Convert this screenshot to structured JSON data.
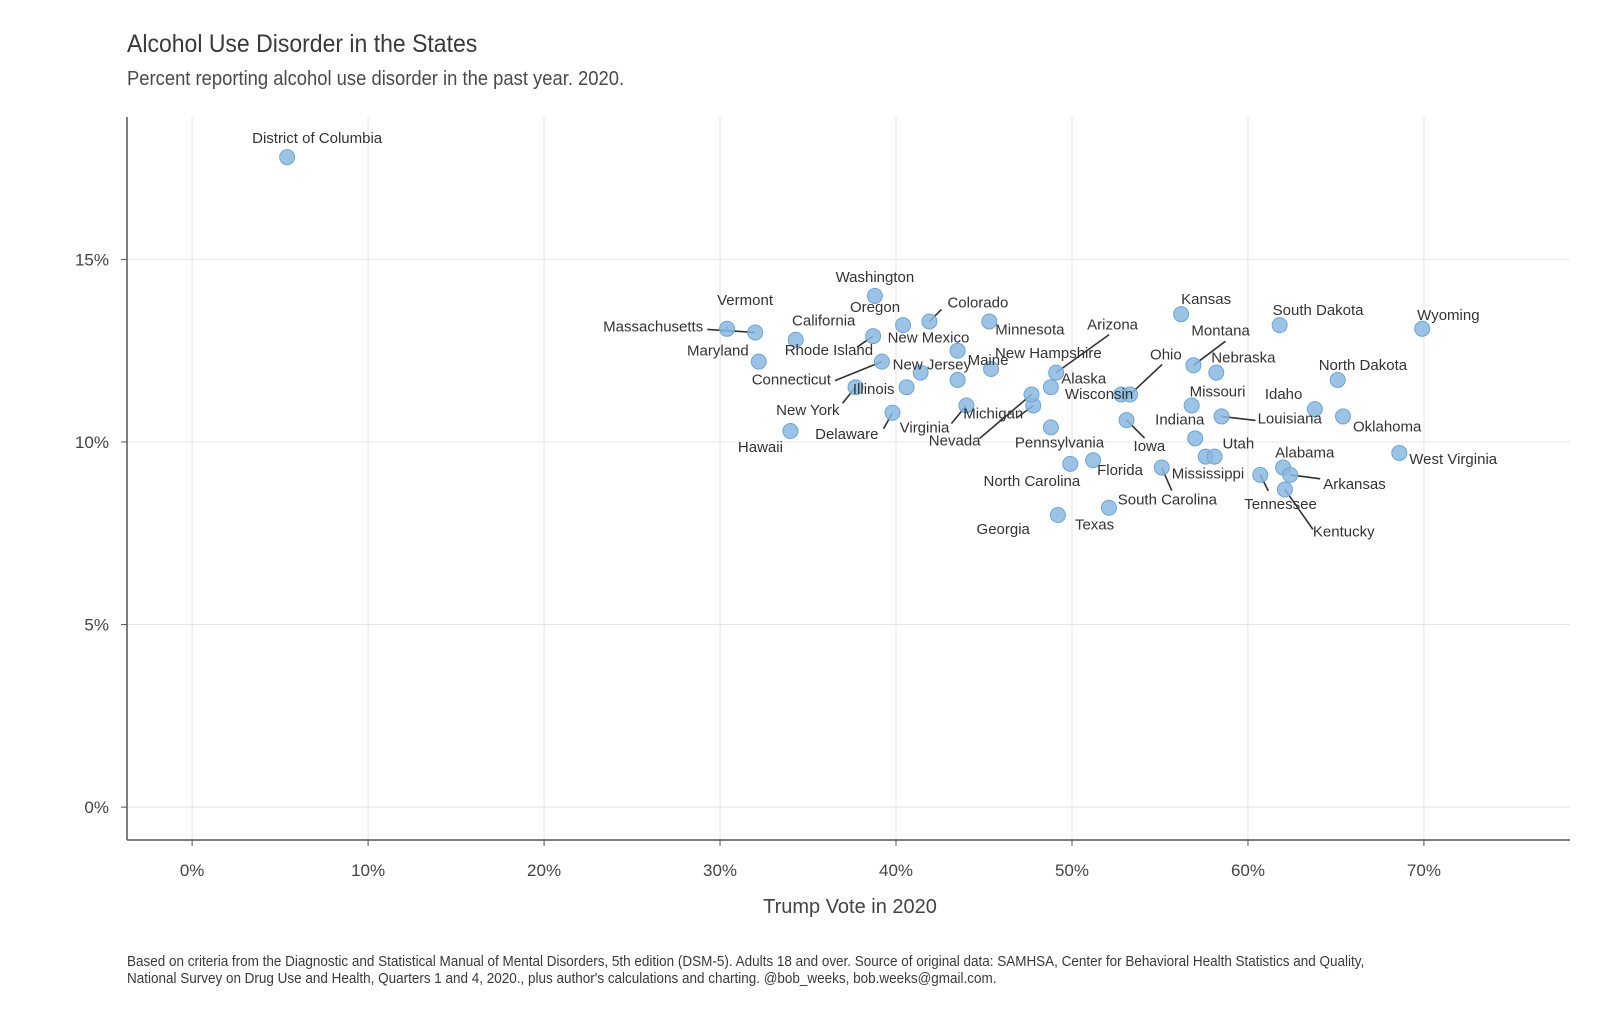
{
  "title": "Alcohol Use Disorder in the States",
  "subtitle": "Percent reporting alcohol use disorder in the past year. 2020.",
  "caption": "Based on criteria from the Diagnostic and Statistical Manual of Mental Disorders, 5th edition (DSM-5). Adults 18 and over. Source of original data: SAMHSA, Center for Behavioral Health Statistics and Quality, National Survey on Drug Use and Health, Quarters 1 and 4, 2020., plus author's calculations and charting. @bob_weeks, bob.weeks@gmail.com.",
  "colors": {
    "point": "#8ab8e0",
    "point_stroke": "#6ea5d4",
    "grid": "#e4e4e4",
    "axis": "#555555",
    "text": "#333333"
  },
  "chart_data": {
    "type": "scatter",
    "xlabel": "Trump Vote in 2020",
    "ylabel": "",
    "xlim": [
      -3.7,
      78.3
    ],
    "ylim": [
      -0.9,
      18.9
    ],
    "x_ticks": [
      0,
      10,
      20,
      30,
      40,
      50,
      60,
      70
    ],
    "x_tick_labels": [
      "0%",
      "10%",
      "20%",
      "30%",
      "40%",
      "50%",
      "60%",
      "70%"
    ],
    "y_ticks": [
      0,
      5,
      10,
      15
    ],
    "y_tick_labels": [
      "0%",
      "5%",
      "10%",
      "15%"
    ],
    "grid": true,
    "points": [
      {
        "label": "District of Columbia",
        "x": 5.4,
        "y": 17.8
      },
      {
        "label": "Vermont",
        "x": 30.4,
        "y": 13.1
      },
      {
        "label": "Massachusetts",
        "x": 32.0,
        "y": 13.0
      },
      {
        "label": "California",
        "x": 34.3,
        "y": 12.8
      },
      {
        "label": "Maryland",
        "x": 32.2,
        "y": 12.2
      },
      {
        "label": "Hawaii",
        "x": 34.0,
        "y": 10.3
      },
      {
        "label": "New York",
        "x": 37.7,
        "y": 11.5
      },
      {
        "label": "Washington",
        "x": 38.8,
        "y": 14.0
      },
      {
        "label": "Rhode Island",
        "x": 38.7,
        "y": 12.9
      },
      {
        "label": "Connecticut",
        "x": 39.2,
        "y": 12.2
      },
      {
        "label": "Delaware",
        "x": 39.8,
        "y": 10.8
      },
      {
        "label": "Illinois",
        "x": 40.6,
        "y": 11.5
      },
      {
        "label": "Oregon",
        "x": 40.4,
        "y": 13.2
      },
      {
        "label": "Colorado",
        "x": 41.9,
        "y": 13.3
      },
      {
        "label": "New Jersey",
        "x": 41.4,
        "y": 11.9
      },
      {
        "label": "New Mexico",
        "x": 43.5,
        "y": 12.5
      },
      {
        "label": "Virginia",
        "x": 44.0,
        "y": 11.0
      },
      {
        "label": "Maine",
        "x": 43.5,
        "y": 11.7
      },
      {
        "label": "Minnesota",
        "x": 45.3,
        "y": 13.3
      },
      {
        "label": "Michigan",
        "x": 47.8,
        "y": 11.0
      },
      {
        "label": "Nevada",
        "x": 47.7,
        "y": 11.3
      },
      {
        "label": "New Hampshire",
        "x": 45.4,
        "y": 12.0
      },
      {
        "label": "Pennsylvania",
        "x": 48.8,
        "y": 10.4
      },
      {
        "label": "Wisconsin",
        "x": 48.8,
        "y": 11.5
      },
      {
        "label": "Arizona",
        "x": 49.1,
        "y": 11.9
      },
      {
        "label": "Georgia",
        "x": 49.2,
        "y": 8.0
      },
      {
        "label": "North Carolina",
        "x": 49.9,
        "y": 9.4
      },
      {
        "label": "Florida",
        "x": 51.2,
        "y": 9.5
      },
      {
        "label": "Texas",
        "x": 52.1,
        "y": 8.2
      },
      {
        "label": "Alaska",
        "x": 52.8,
        "y": 11.3
      },
      {
        "label": "Ohio",
        "x": 53.3,
        "y": 11.3
      },
      {
        "label": "Iowa",
        "x": 53.1,
        "y": 10.6
      },
      {
        "label": "South Carolina",
        "x": 55.1,
        "y": 9.3
      },
      {
        "label": "Kansas",
        "x": 56.2,
        "y": 13.5
      },
      {
        "label": "Mississippi",
        "x": 57.6,
        "y": 9.6
      },
      {
        "label": "Missouri",
        "x": 56.8,
        "y": 11.0
      },
      {
        "label": "Indiana",
        "x": 57.0,
        "y": 10.1
      },
      {
        "label": "Montana",
        "x": 56.9,
        "y": 12.1
      },
      {
        "label": "Utah",
        "x": 58.1,
        "y": 9.6
      },
      {
        "label": "Nebraska",
        "x": 58.2,
        "y": 11.9
      },
      {
        "label": "Louisiana",
        "x": 58.5,
        "y": 10.7
      },
      {
        "label": "Tennessee",
        "x": 60.7,
        "y": 9.1
      },
      {
        "label": "South Dakota",
        "x": 61.8,
        "y": 13.2
      },
      {
        "label": "Kentucky",
        "x": 62.1,
        "y": 8.7
      },
      {
        "label": "Alabama",
        "x": 62.0,
        "y": 9.3
      },
      {
        "label": "Arkansas",
        "x": 62.4,
        "y": 9.1
      },
      {
        "label": "Idaho",
        "x": 63.8,
        "y": 10.9
      },
      {
        "label": "North Dakota",
        "x": 65.1,
        "y": 11.7
      },
      {
        "label": "Oklahoma",
        "x": 65.4,
        "y": 10.7
      },
      {
        "label": "West Virginia",
        "x": 68.6,
        "y": 9.7
      },
      {
        "label": "Wyoming",
        "x": 69.9,
        "y": 13.1
      }
    ]
  }
}
